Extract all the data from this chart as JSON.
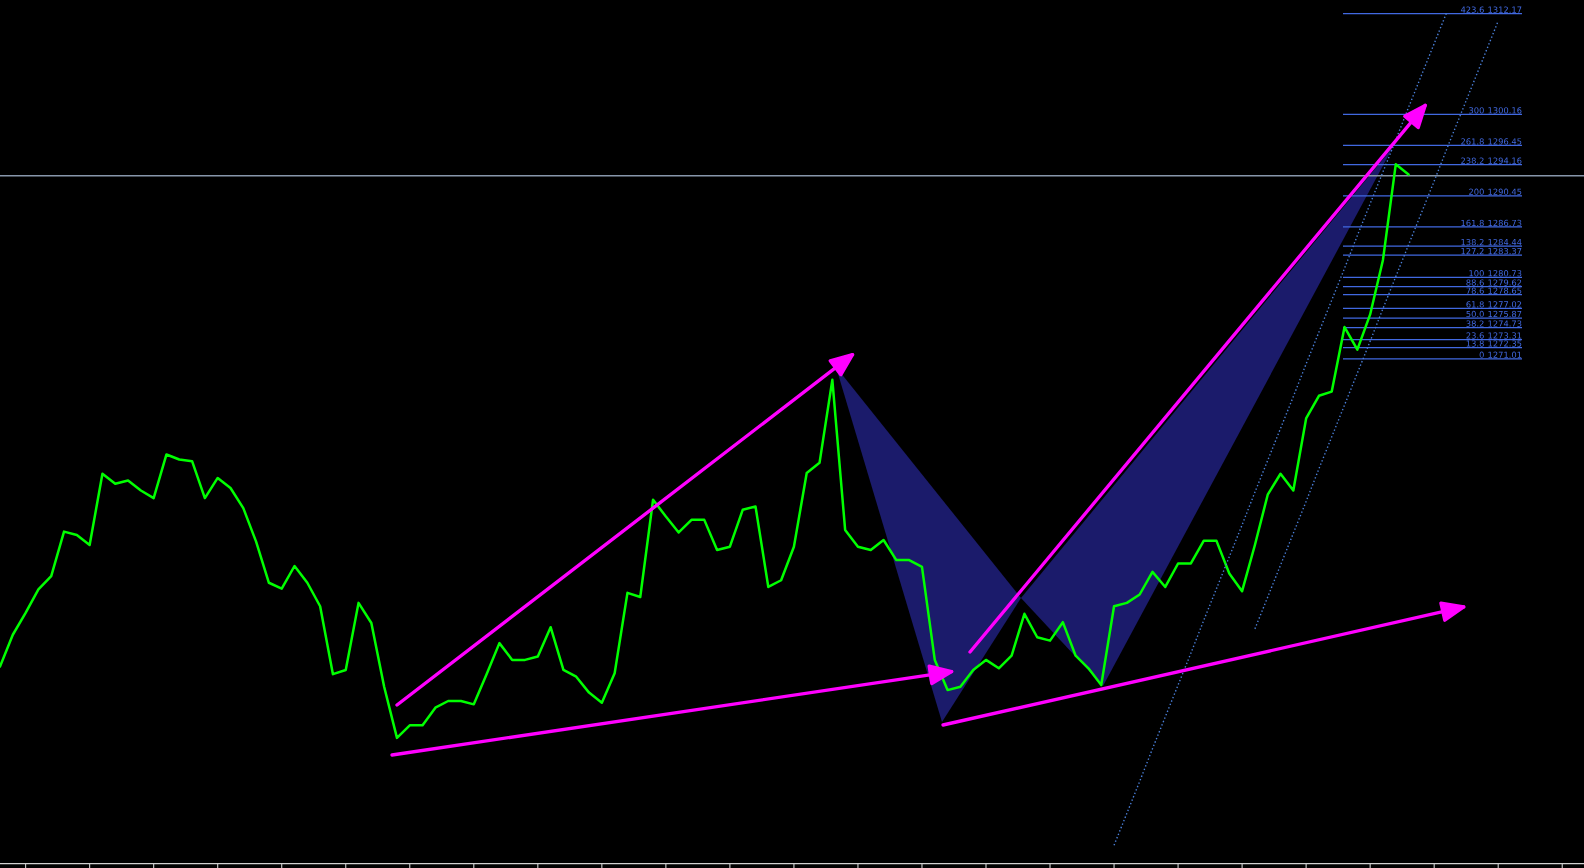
{
  "chart_data": {
    "type": "line",
    "categories": [
      null,
      null,
      null,
      null,
      null,
      null,
      null,
      null,
      null,
      null,
      null,
      null,
      null,
      null,
      null,
      null,
      null,
      null,
      null,
      null,
      null,
      null,
      null,
      null,
      null,
      null,
      null,
      null,
      null,
      null,
      null,
      null,
      null,
      null,
      null,
      null,
      null,
      null,
      null,
      null,
      null,
      null,
      null,
      null,
      null,
      null,
      null,
      null,
      null,
      null,
      null,
      null,
      null,
      null,
      null,
      null,
      null,
      null,
      null,
      null,
      null,
      null,
      null,
      null,
      null,
      null,
      null,
      null,
      null,
      null,
      null,
      null,
      null,
      null,
      null,
      null,
      null,
      null,
      null,
      null,
      null,
      null,
      null,
      null,
      null,
      null,
      null,
      null,
      null,
      null,
      null,
      null,
      null,
      null,
      null,
      null,
      null,
      null,
      null,
      null,
      null,
      null,
      null,
      null,
      null,
      null,
      null,
      null,
      null,
      null,
      null,
      null,
      null,
      null,
      null,
      null,
      null,
      null,
      null,
      null,
      null,
      null,
      null,
      null
    ],
    "ylim": [
      1210.8,
      1313.8
    ],
    "yticks": [
      1312.17,
      1300.16,
      1296.45,
      1294.16,
      1290.45,
      1286.73,
      1284.44,
      1283.37,
      1280.73,
      1279.62,
      1278.65,
      1277.02,
      1275.87,
      1274.73,
      1273.31,
      1272.35,
      1271.01
    ],
    "grid": "y",
    "tick_labels": "y",
    "annotations": [
      "423.6",
      "300",
      "261.8",
      "238.2",
      "200",
      "161.8",
      "138.2",
      "127.2",
      "100",
      "88.6",
      "78.6",
      "61.8",
      "50.0",
      "38.2",
      "23.6",
      "13.8",
      "0"
    ],
    "series": [
      {
        "color": "#00ff00",
        "values": [
          1234.3,
          1238.1,
          1240.7,
          1243.5,
          1245.1,
          1250.4,
          1250.0,
          1248.8,
          1257.3,
          1256.1,
          1256.5,
          1255.3,
          1254.4,
          1259.6,
          1259.0,
          1258.8,
          1254.4,
          1256.8,
          1255.6,
          1253.2,
          1249.2,
          1244.3,
          1243.6,
          1246.3,
          1244.3,
          1241.5,
          1233.4,
          1233.9,
          1241.9,
          1239.5,
          1231.9,
          1225.8,
          1227.3,
          1227.3,
          1229.4,
          1230.2,
          1230.2,
          1229.8,
          1233.4,
          1237.1,
          1235.1,
          1235.1,
          1235.5,
          1239.0,
          1233.9,
          1233.1,
          1231.2,
          1230.0,
          1233.5,
          1243.1,
          1242.6,
          1254.2,
          1252.2,
          1250.3,
          1251.8,
          1251.8,
          1248.2,
          1248.6,
          1253.0,
          1253.4,
          1243.8,
          1244.6,
          1248.6,
          1257.4,
          1258.6,
          1268.5,
          1250.6,
          1248.6,
          1248.2,
          1249.4,
          1247.0,
          1247.0,
          1246.2,
          1235.1,
          1231.5,
          1231.9,
          1233.9,
          1235.1,
          1234.1,
          1235.6,
          1240.6,
          1237.8,
          1237.4,
          1239.6,
          1235.6,
          1234.1,
          1232.1,
          1241.5,
          1241.9,
          1242.9,
          1245.6,
          1243.8,
          1246.6,
          1246.6,
          1249.3,
          1249.3,
          1245.4,
          1243.3,
          1248.8,
          1254.8,
          1257.3,
          1255.3,
          1263.9,
          1266.6,
          1267.1,
          1274.8,
          1272.1,
          1276.3,
          1282.8,
          1294.2,
          1293.0,
          null,
          null,
          null,
          null,
          null,
          null,
          null,
          null,
          null,
          null,
          null,
          null,
          null
        ]
      },
      {
        "type": "line",
        "color": "#4a7fd8",
        "line_style": "dotted",
        "values": [
          null,
          null,
          null,
          null,
          null,
          null,
          null,
          null,
          null,
          null,
          null,
          null,
          null,
          null,
          null,
          null,
          null,
          null,
          null,
          null,
          null,
          null,
          null,
          null,
          null,
          null,
          null,
          null,
          null,
          null,
          null,
          null,
          null,
          null,
          null,
          null,
          null,
          null,
          null,
          null,
          null,
          null,
          null,
          null,
          null,
          null,
          null,
          null,
          null,
          null,
          null,
          null,
          null,
          null,
          null,
          null,
          null,
          null,
          null,
          null,
          null,
          null,
          null,
          null,
          null,
          null,
          null,
          null,
          null,
          null,
          null,
          null,
          null,
          null,
          null,
          null,
          null,
          null,
          null,
          null,
          null,
          null,
          null,
          null,
          null,
          null,
          null,
          1213.0,
          1216.8,
          1220.6,
          1224.5,
          1228.3,
          1232.1,
          1235.9,
          1239.8,
          1243.6,
          1247.4,
          1251.2,
          1255.1,
          1258.9,
          1262.7,
          1266.5,
          1270.4,
          1274.2,
          1278.0,
          1281.8,
          1285.7,
          1289.5,
          1293.3,
          1297.1,
          1301.0,
          1304.8,
          1308.6,
          1312.4,
          null,
          null,
          null,
          null,
          null,
          null,
          null,
          null,
          null,
          null
        ]
      },
      {
        "type": "line",
        "color": "#4a7fd8",
        "line_style": "dotted",
        "values": [
          null,
          null,
          null,
          null,
          null,
          null,
          null,
          null,
          null,
          null,
          null,
          null,
          null,
          null,
          null,
          null,
          null,
          null,
          null,
          null,
          null,
          null,
          null,
          null,
          null,
          null,
          null,
          null,
          null,
          null,
          null,
          null,
          null,
          null,
          null,
          null,
          null,
          null,
          null,
          null,
          null,
          null,
          null,
          null,
          null,
          null,
          null,
          null,
          null,
          null,
          null,
          null,
          null,
          null,
          null,
          null,
          null,
          null,
          null,
          null,
          null,
          null,
          null,
          null,
          null,
          null,
          null,
          null,
          null,
          null,
          null,
          null,
          null,
          null,
          null,
          null,
          null,
          null,
          null,
          null,
          null,
          null,
          null,
          null,
          null,
          null,
          null,
          null,
          null,
          null,
          null,
          null,
          null,
          null,
          null,
          null,
          null,
          null,
          1238.8,
          1242.6,
          1246.4,
          1250.2,
          1254.0,
          1257.9,
          1261.7,
          1265.5,
          1269.3,
          1273.1,
          1277.0,
          1280.8,
          1284.6,
          1288.4,
          1292.2,
          1296.1,
          1299.9,
          1303.7,
          1307.5,
          1311.3,
          null,
          null,
          null,
          null,
          null,
          null
        ]
      }
    ],
    "ref_lines": [
      {
        "axis": "y",
        "value": 1292.84,
        "color": "#8796aa"
      }
    ]
  }
}
